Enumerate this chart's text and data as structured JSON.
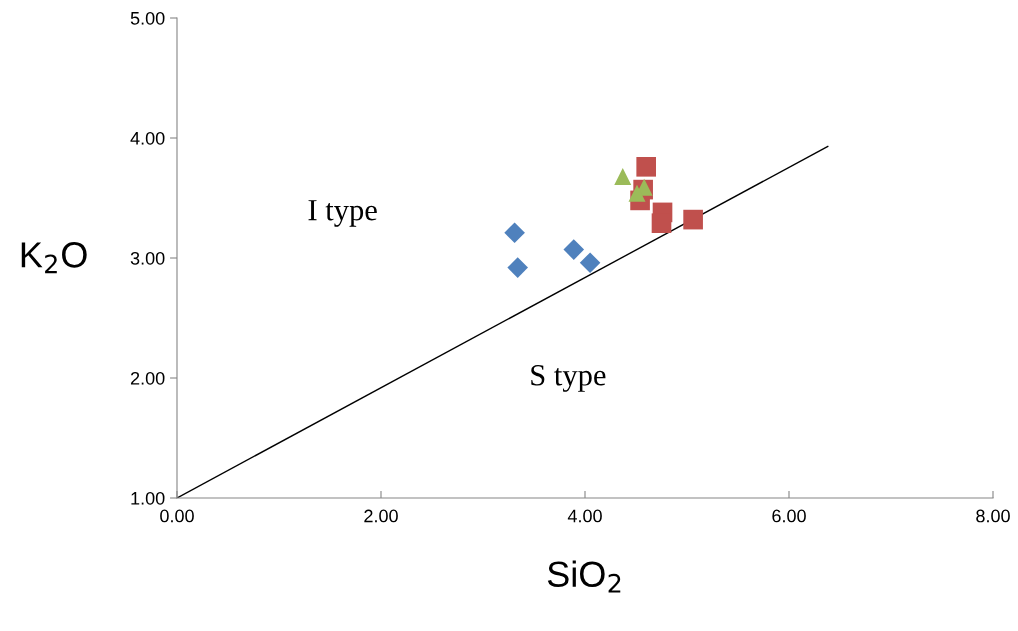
{
  "chart_data": {
    "type": "scatter",
    "xlabel": "SiO$_{2}$",
    "ylabel": "K$_{2}$O",
    "xlim": [
      0,
      8
    ],
    "ylim": [
      1,
      5
    ],
    "xticks": [
      {
        "value": 0,
        "label": "0.00"
      },
      {
        "value": 2,
        "label": "2.00"
      },
      {
        "value": 4,
        "label": "4.00"
      },
      {
        "value": 6,
        "label": "6.00"
      },
      {
        "value": 8,
        "label": "8.00"
      }
    ],
    "yticks": [
      {
        "value": 1,
        "label": "1.00"
      },
      {
        "value": 2,
        "label": "2.00"
      },
      {
        "value": 3,
        "label": "3.00"
      },
      {
        "value": 4,
        "label": "4.00"
      },
      {
        "value": 5,
        "label": "5.00"
      }
    ],
    "grid": false,
    "legend": false,
    "series": [
      {
        "color": "#4f81bd",
        "marker": "diamond",
        "x": [
          3.31,
          3.34,
          3.89,
          4.05
        ],
        "values": [
          3.21,
          2.92,
          3.07,
          2.96
        ]
      },
      {
        "color": "#c0504d",
        "marker": "square",
        "x": [
          4.6,
          4.57,
          4.54,
          4.76,
          4.75,
          5.06
        ],
        "values": [
          3.76,
          3.57,
          3.48,
          3.38,
          3.29,
          3.32
        ]
      },
      {
        "color": "#9bbb59",
        "marker": "triangle",
        "x": [
          4.37,
          4.58,
          4.51
        ],
        "values": [
          3.68,
          3.59,
          3.54
        ]
      },
      {
        "type": "line",
        "color": "#000000",
        "marker": "none",
        "x": [
          0,
          6.38
        ],
        "values": [
          1,
          3.93
        ]
      }
    ],
    "annotations": [
      "I type",
      "S type"
    ]
  }
}
